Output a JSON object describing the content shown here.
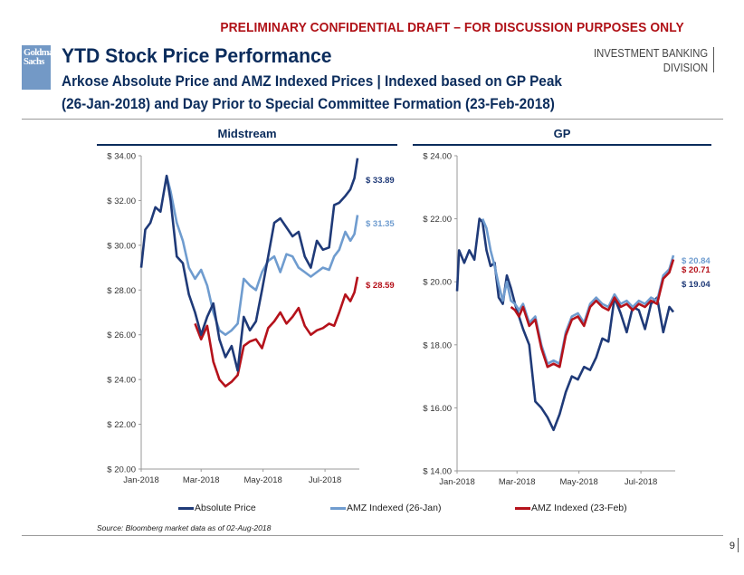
{
  "header": {
    "draft_banner": "PRELIMINARY CONFIDENTIAL DRAFT – FOR DISCUSSION PURPOSES ONLY",
    "logo_line1": "Goldman",
    "logo_line2": "Sachs",
    "title": "YTD Stock Price Performance",
    "subtitle_line1": "Arkose Absolute Price and AMZ Indexed Prices | Indexed based on GP Peak",
    "subtitle_line2": "(26-Jan-2018) and Day Prior to Special Committee Formation (23-Feb-2018)",
    "division_line1": "INVESTMENT BANKING",
    "division_line2": "DIVISION"
  },
  "colors": {
    "absolute": "#1f3a78",
    "amz_jan": "#6f9ccf",
    "amz_feb": "#b5121b",
    "title": "#0b2c5c",
    "draft": "#b01117"
  },
  "legend": [
    {
      "label": "Absolute Price",
      "color": "#1f3a78"
    },
    {
      "label": "AMZ Indexed (26-Jan)",
      "color": "#6f9ccf"
    },
    {
      "label": "AMZ Indexed (23-Feb)",
      "color": "#b5121b"
    }
  ],
  "footer": {
    "source": "Source: Bloomberg market data as of 02-Aug-2018",
    "page_number": "9"
  },
  "chart_data": [
    {
      "type": "line",
      "title": "Midstream",
      "xlabel": "",
      "ylabel": "",
      "x_range": [
        "2018-01-01",
        "2018-08-02"
      ],
      "x_ticks": [
        "Jan-2018",
        "Mar-2018",
        "May-2018",
        "Jul-2018"
      ],
      "ylim": [
        20,
        34
      ],
      "y_ticks": [
        "$ 20.00",
        "$ 22.00",
        "$ 24.00",
        "$ 26.00",
        "$ 28.00",
        "$ 30.00",
        "$ 32.00",
        "$ 34.00"
      ],
      "grid": false,
      "legend_position": "bottom",
      "series": [
        {
          "name": "Absolute Price",
          "end_label": "$ 33.89",
          "x_days": [
            1,
            5,
            10,
            15,
            20,
            26,
            30,
            36,
            42,
            48,
            54,
            60,
            66,
            72,
            78,
            84,
            90,
            96,
            102,
            108,
            114,
            120,
            126,
            132,
            138,
            144,
            150,
            156,
            162,
            168,
            174,
            180,
            186,
            191,
            196,
            202,
            207,
            211,
            214
          ],
          "values": [
            29.0,
            30.7,
            31.0,
            31.7,
            31.5,
            33.1,
            32.0,
            29.5,
            29.2,
            27.8,
            27.0,
            26.0,
            26.8,
            27.4,
            25.8,
            25.0,
            25.5,
            24.4,
            26.8,
            26.2,
            26.6,
            28.0,
            29.5,
            31.0,
            31.2,
            30.8,
            30.4,
            30.6,
            29.5,
            29.0,
            30.2,
            29.8,
            29.9,
            31.8,
            31.9,
            32.2,
            32.5,
            33.0,
            33.89
          ]
        },
        {
          "name": "AMZ Indexed (26-Jan)",
          "end_label": "$ 31.35",
          "x_days": [
            26,
            30,
            36,
            42,
            48,
            54,
            60,
            66,
            72,
            78,
            84,
            90,
            96,
            102,
            108,
            114,
            120,
            126,
            132,
            138,
            144,
            150,
            156,
            162,
            168,
            174,
            180,
            186,
            191,
            196,
            202,
            207,
            211,
            214
          ],
          "values": [
            33.1,
            32.4,
            31.0,
            30.2,
            29.0,
            28.5,
            28.9,
            28.2,
            27.0,
            26.2,
            26.0,
            26.2,
            26.5,
            28.5,
            28.2,
            28.0,
            28.8,
            29.3,
            29.5,
            28.8,
            29.6,
            29.5,
            29.0,
            28.8,
            28.6,
            28.8,
            29.0,
            28.9,
            29.5,
            29.8,
            30.6,
            30.2,
            30.5,
            31.35
          ]
        },
        {
          "name": "AMZ Indexed (23-Feb)",
          "end_label": "$ 28.59",
          "x_days": [
            54,
            60,
            66,
            72,
            78,
            84,
            90,
            96,
            102,
            108,
            114,
            120,
            126,
            132,
            138,
            144,
            150,
            156,
            162,
            168,
            174,
            180,
            186,
            191,
            196,
            202,
            207,
            211,
            214
          ],
          "values": [
            26.5,
            25.8,
            26.4,
            24.8,
            24.0,
            23.7,
            23.9,
            24.2,
            25.5,
            25.7,
            25.8,
            25.4,
            26.3,
            26.6,
            27.0,
            26.5,
            26.8,
            27.2,
            26.4,
            26.0,
            26.2,
            26.3,
            26.5,
            26.4,
            27.0,
            27.8,
            27.5,
            27.9,
            28.59
          ]
        }
      ]
    },
    {
      "type": "line",
      "title": "GP",
      "xlabel": "",
      "ylabel": "",
      "x_range": [
        "2018-01-01",
        "2018-08-02"
      ],
      "x_ticks": [
        "Jan-2018",
        "Mar-2018",
        "May-2018",
        "Jul-2018"
      ],
      "ylim": [
        14,
        24
      ],
      "y_ticks": [
        "$ 14.00",
        "$ 16.00",
        "$ 18.00",
        "$ 20.00",
        "$ 22.00",
        "$ 24.00"
      ],
      "grid": false,
      "legend_position": "bottom",
      "series": [
        {
          "name": "Absolute Price",
          "end_label": "$ 19.04",
          "x_days": [
            1,
            3,
            8,
            13,
            18,
            23,
            26,
            30,
            34,
            38,
            42,
            46,
            50,
            54,
            58,
            62,
            66,
            72,
            78,
            84,
            90,
            96,
            102,
            108,
            114,
            120,
            126,
            132,
            138,
            144,
            150,
            156,
            162,
            168,
            174,
            180,
            186,
            192,
            198,
            204,
            210,
            214
          ],
          "values": [
            19.7,
            21.0,
            20.6,
            21.0,
            20.7,
            22.0,
            21.9,
            21.0,
            20.5,
            20.6,
            19.5,
            19.3,
            20.2,
            19.8,
            19.3,
            18.9,
            18.5,
            18.0,
            16.2,
            16.0,
            15.7,
            15.3,
            15.8,
            16.5,
            17.0,
            16.9,
            17.3,
            17.2,
            17.6,
            18.2,
            18.1,
            19.5,
            19.0,
            18.4,
            19.2,
            19.1,
            18.5,
            19.3,
            19.5,
            18.4,
            19.2,
            19.04
          ]
        },
        {
          "name": "AMZ Indexed (26-Jan)",
          "end_label": "$ 20.84",
          "x_days": [
            26,
            30,
            34,
            38,
            42,
            46,
            50,
            54,
            58,
            62,
            66,
            72,
            78,
            84,
            90,
            96,
            102,
            108,
            114,
            120,
            126,
            132,
            138,
            144,
            150,
            156,
            162,
            168,
            174,
            180,
            186,
            192,
            198,
            204,
            210,
            214
          ],
          "values": [
            22.0,
            21.7,
            21.0,
            20.5,
            19.9,
            19.4,
            20.0,
            19.4,
            19.3,
            19.1,
            19.3,
            18.7,
            18.9,
            18.0,
            17.4,
            17.5,
            17.4,
            18.4,
            18.9,
            19.0,
            18.7,
            19.3,
            19.5,
            19.3,
            19.2,
            19.6,
            19.3,
            19.4,
            19.2,
            19.4,
            19.3,
            19.5,
            19.4,
            20.2,
            20.4,
            20.84
          ]
        },
        {
          "name": "AMZ Indexed (23-Feb)",
          "end_label": "$ 20.71",
          "x_days": [
            54,
            58,
            62,
            66,
            72,
            78,
            84,
            90,
            96,
            102,
            108,
            114,
            120,
            126,
            132,
            138,
            144,
            150,
            156,
            162,
            168,
            174,
            180,
            186,
            192,
            198,
            204,
            210,
            214
          ],
          "values": [
            19.2,
            19.1,
            18.9,
            19.2,
            18.6,
            18.8,
            17.9,
            17.3,
            17.4,
            17.3,
            18.3,
            18.8,
            18.9,
            18.6,
            19.2,
            19.4,
            19.2,
            19.1,
            19.5,
            19.2,
            19.3,
            19.1,
            19.3,
            19.2,
            19.4,
            19.3,
            20.1,
            20.3,
            20.71
          ]
        }
      ]
    }
  ]
}
